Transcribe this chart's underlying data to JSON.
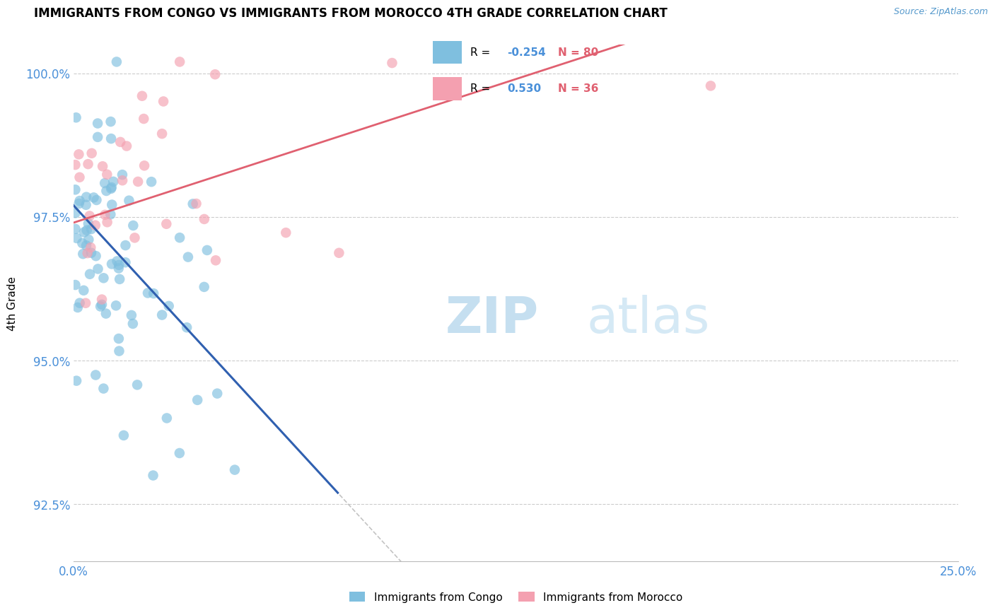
{
  "title": "IMMIGRANTS FROM CONGO VS IMMIGRANTS FROM MOROCCO 4TH GRADE CORRELATION CHART",
  "source_text": "Source: ZipAtlas.com",
  "ylabel": "4th Grade",
  "xlim": [
    0.0,
    0.25
  ],
  "ylim": [
    0.915,
    1.005
  ],
  "xticks": [
    0.0,
    0.05,
    0.1,
    0.15,
    0.2,
    0.25
  ],
  "xticklabels_left": "0.0%",
  "xticklabels_right": "25.0%",
  "yticks": [
    0.925,
    0.95,
    0.975,
    1.0
  ],
  "yticklabels": [
    "92.5%",
    "95.0%",
    "97.5%",
    "100.0%"
  ],
  "r_congo": -0.254,
  "n_congo": 80,
  "r_morocco": 0.53,
  "n_morocco": 36,
  "color_congo": "#7fbfdf",
  "color_morocco": "#f4a0b0",
  "color_line_congo": "#3060b0",
  "color_line_morocco": "#e06070",
  "legend_label_congo": "Immigrants from Congo",
  "legend_label_morocco": "Immigrants from Morocco"
}
